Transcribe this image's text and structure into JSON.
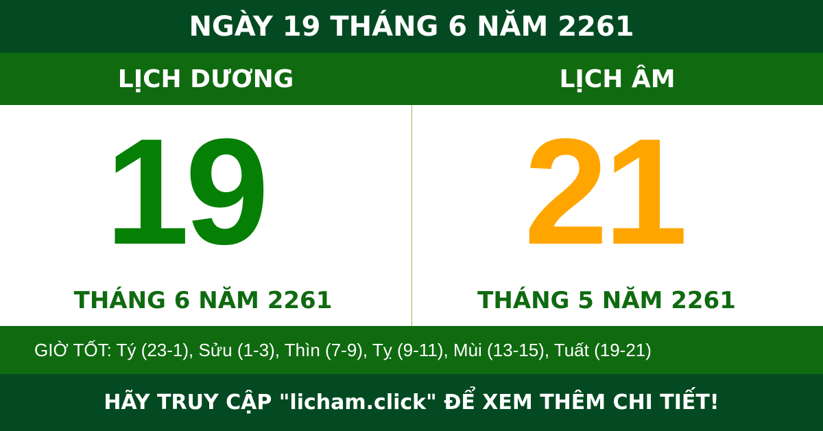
{
  "title": "NGÀY 19 THÁNG 6 NĂM 2261",
  "solar": {
    "label": "LỊCH DƯƠNG",
    "day": "19",
    "month_year": "THÁNG 6 NĂM 2261"
  },
  "lunar": {
    "label": "LỊCH ÂM",
    "day": "21",
    "month_year": "THÁNG 5 NĂM 2261"
  },
  "good_hours": "GIỜ TỐT: Tý (23-1), Sửu (1-3), Thìn (7-9), Tỵ (9-11), Mùi (13-15), Tuất (19-21)",
  "footer": "HÃY TRUY CẬP \"licham.click\" ĐỂ XEM THÊM CHI TIẾT!",
  "colors": {
    "dark_green": "#034a22",
    "green": "#0f6a10",
    "solar_day": "#058005",
    "lunar_day": "#ffa500"
  }
}
